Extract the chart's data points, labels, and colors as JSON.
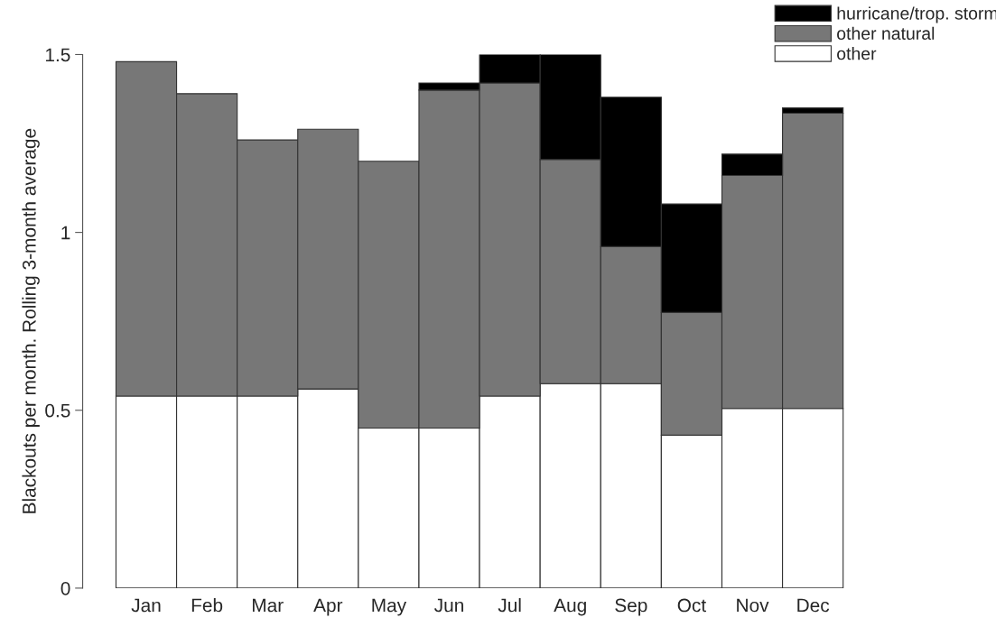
{
  "chart_data": {
    "type": "bar",
    "stacked": true,
    "ylabel": "Blackouts per month. Rolling 3-month average",
    "categories": [
      "Jan",
      "Feb",
      "Mar",
      "Apr",
      "May",
      "Jun",
      "Jul",
      "Aug",
      "Sep",
      "Oct",
      "Nov",
      "Dec"
    ],
    "series": [
      {
        "name": "other",
        "color": "#ffffff",
        "values": [
          0.54,
          0.54,
          0.54,
          0.56,
          0.45,
          0.45,
          0.54,
          0.575,
          0.575,
          0.43,
          0.505,
          0.505
        ]
      },
      {
        "name": "other natural",
        "color": "#777777",
        "values": [
          0.94,
          0.85,
          0.72,
          0.73,
          0.75,
          0.95,
          0.88,
          0.63,
          0.385,
          0.345,
          0.655,
          0.83
        ]
      },
      {
        "name": "hurricane/trop. storm",
        "color": "#000000",
        "values": [
          0,
          0,
          0,
          0,
          0,
          0.02,
          0.08,
          0.3,
          0.42,
          0.305,
          0.06,
          0.015
        ]
      }
    ],
    "ylim": [
      0,
      1.5
    ],
    "yticks": [
      0,
      0.5,
      1,
      1.5
    ],
    "grid": false,
    "legend": "top right"
  }
}
